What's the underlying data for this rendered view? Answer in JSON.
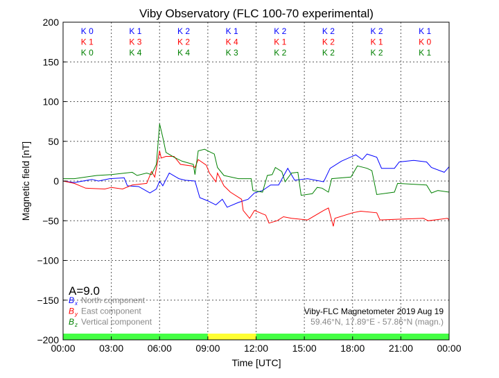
{
  "chart_data": {
    "type": "line",
    "title": "Viby Observatory (FLC 100-70 experimental)",
    "xlabel": "Time [UTC]",
    "ylabel": "Magnetic field [nT]",
    "xlim": [
      0,
      24
    ],
    "ylim": [
      -200,
      200
    ],
    "grid": true,
    "x_ticks": [
      "00:00",
      "03:00",
      "06:00",
      "09:00",
      "12:00",
      "15:00",
      "18:00",
      "21:00",
      "00:00"
    ],
    "y_ticks": [
      200,
      150,
      100,
      50,
      0,
      -50,
      -100,
      -150,
      -200
    ],
    "y_tick_labels": [
      "200",
      "150",
      "100",
      "50",
      "0",
      "−50",
      "−100",
      "−150",
      "−200"
    ],
    "k_indices": {
      "x": [
        "K 0",
        "K 1",
        "K 2",
        "K 1",
        "K 2",
        "K 2",
        "K 2",
        "K 1"
      ],
      "y": [
        "K 1",
        "K 3",
        "K 2",
        "K 4",
        "K 1",
        "K 2",
        "K 1",
        "K 0"
      ],
      "z": [
        "K 0",
        "K 4",
        "K 4",
        "K 3",
        "K 2",
        "K 2",
        "K 2",
        "K 1"
      ]
    },
    "activity_bar": [
      "#44ff44",
      "#44ff44",
      "#44ff44",
      "#ffff33",
      "#44ff44",
      "#44ff44",
      "#44ff44",
      "#44ff44"
    ],
    "a_index": "A=9.0",
    "series": [
      {
        "name": "North component",
        "symbol": "B",
        "sub": "x",
        "color": "#0000ff",
        "points": [
          [
            0,
            0
          ],
          [
            0.7,
            -2
          ],
          [
            1.8,
            2
          ],
          [
            2.2,
            0
          ],
          [
            2.9,
            3
          ],
          [
            3.8,
            4
          ],
          [
            4,
            -6
          ],
          [
            4.7,
            -7
          ],
          [
            5.4,
            -15
          ],
          [
            5.8,
            -10
          ],
          [
            6,
            0
          ],
          [
            6.2,
            -6
          ],
          [
            6.6,
            10
          ],
          [
            7.2,
            3
          ],
          [
            7.6,
            1
          ],
          [
            8.2,
            0
          ],
          [
            8.5,
            -21
          ],
          [
            9,
            -25
          ],
          [
            9.5,
            -30
          ],
          [
            9.9,
            -23
          ],
          [
            10.2,
            -33
          ],
          [
            10.9,
            -27
          ],
          [
            11.5,
            -23
          ],
          [
            11.9,
            -15
          ],
          [
            12.4,
            -12
          ],
          [
            12.9,
            -5
          ],
          [
            13.4,
            -5
          ],
          [
            13.97,
            16
          ],
          [
            14.4,
            1
          ],
          [
            15.2,
            3
          ],
          [
            16.2,
            -1
          ],
          [
            16.6,
            16
          ],
          [
            17.3,
            25
          ],
          [
            18.2,
            33
          ],
          [
            18.6,
            27
          ],
          [
            18.9,
            34
          ],
          [
            19.5,
            30
          ],
          [
            19.8,
            16
          ],
          [
            20.6,
            16
          ],
          [
            20.9,
            24
          ],
          [
            21.8,
            26
          ],
          [
            22.6,
            24
          ],
          [
            22.9,
            17
          ],
          [
            23.7,
            11
          ],
          [
            24,
            18
          ]
        ]
      },
      {
        "name": "East component",
        "symbol": "B",
        "sub": "y",
        "color": "#ff0000",
        "points": [
          [
            0,
            0
          ],
          [
            0.7,
            -3
          ],
          [
            1.4,
            -9
          ],
          [
            2.6,
            -10
          ],
          [
            3,
            -8
          ],
          [
            3.7,
            -10
          ],
          [
            4.3,
            -5
          ],
          [
            5.2,
            -3
          ],
          [
            5.5,
            12
          ],
          [
            5.7,
            5
          ],
          [
            6,
            38
          ],
          [
            6.1,
            29
          ],
          [
            6.4,
            31
          ],
          [
            6.9,
            31
          ],
          [
            7.3,
            21
          ],
          [
            8,
            19
          ],
          [
            8.2,
            17
          ],
          [
            8.4,
            27
          ],
          [
            8.9,
            20
          ],
          [
            9.1,
            10
          ],
          [
            9.5,
            -1
          ],
          [
            9.6,
            10
          ],
          [
            10,
            -6
          ],
          [
            10.4,
            -14
          ],
          [
            11.1,
            -23
          ],
          [
            11.2,
            -37
          ],
          [
            11.6,
            -47
          ],
          [
            11.9,
            -37
          ],
          [
            12.6,
            -43
          ],
          [
            12.8,
            -53
          ],
          [
            13.3,
            -50
          ],
          [
            13.7,
            -45
          ],
          [
            14.2,
            -47
          ],
          [
            15.2,
            -49
          ],
          [
            16.2,
            -37
          ],
          [
            16.5,
            -34
          ],
          [
            16.8,
            -57
          ],
          [
            16.9,
            -47
          ],
          [
            18,
            -40
          ],
          [
            18.5,
            -38
          ],
          [
            19.5,
            -40
          ],
          [
            19.7,
            -49
          ],
          [
            20.9,
            -48
          ],
          [
            22.4,
            -47
          ],
          [
            22.7,
            -50
          ],
          [
            23.9,
            -47
          ],
          [
            24,
            -49
          ]
        ]
      },
      {
        "name": "Vertical component",
        "symbol": "B",
        "sub": "z",
        "color": "#008000",
        "points": [
          [
            0,
            3
          ],
          [
            0.7,
            3
          ],
          [
            2.1,
            7
          ],
          [
            3,
            8
          ],
          [
            4.3,
            11
          ],
          [
            4.6,
            7
          ],
          [
            5.2,
            10
          ],
          [
            5.5,
            8
          ],
          [
            5.8,
            21
          ],
          [
            6,
            72
          ],
          [
            6.2,
            55
          ],
          [
            6.4,
            36
          ],
          [
            6.9,
            30
          ],
          [
            7.4,
            25
          ],
          [
            8.1,
            21
          ],
          [
            8.2,
            8
          ],
          [
            8.4,
            38
          ],
          [
            8.8,
            40
          ],
          [
            9.2,
            36
          ],
          [
            9.4,
            34
          ],
          [
            9.6,
            17
          ],
          [
            10,
            7
          ],
          [
            10.9,
            3
          ],
          [
            11.7,
            3
          ],
          [
            11.8,
            -12
          ],
          [
            12.4,
            -14
          ],
          [
            12.7,
            7
          ],
          [
            13,
            8
          ],
          [
            13.2,
            17
          ],
          [
            13.6,
            12
          ],
          [
            13.8,
            -1
          ],
          [
            14.2,
            10
          ],
          [
            14.6,
            11
          ],
          [
            14.8,
            -18
          ],
          [
            15.5,
            -16
          ],
          [
            15.8,
            -8
          ],
          [
            16.1,
            -9
          ],
          [
            16.5,
            -14
          ],
          [
            16.7,
            3
          ],
          [
            17.9,
            5
          ],
          [
            18.3,
            19
          ],
          [
            18.9,
            16
          ],
          [
            19.2,
            13
          ],
          [
            19.5,
            -17
          ],
          [
            20.6,
            -14
          ],
          [
            20.8,
            -3
          ],
          [
            22.6,
            -5
          ],
          [
            22.9,
            -15
          ],
          [
            23.3,
            -12
          ],
          [
            24,
            -14
          ]
        ]
      }
    ],
    "annotations": {
      "station": "Viby-FLC Magnetometer 2019 Aug 19",
      "coords": "59.46°N, 17.89°E - 57.86°N (magn.)"
    }
  }
}
